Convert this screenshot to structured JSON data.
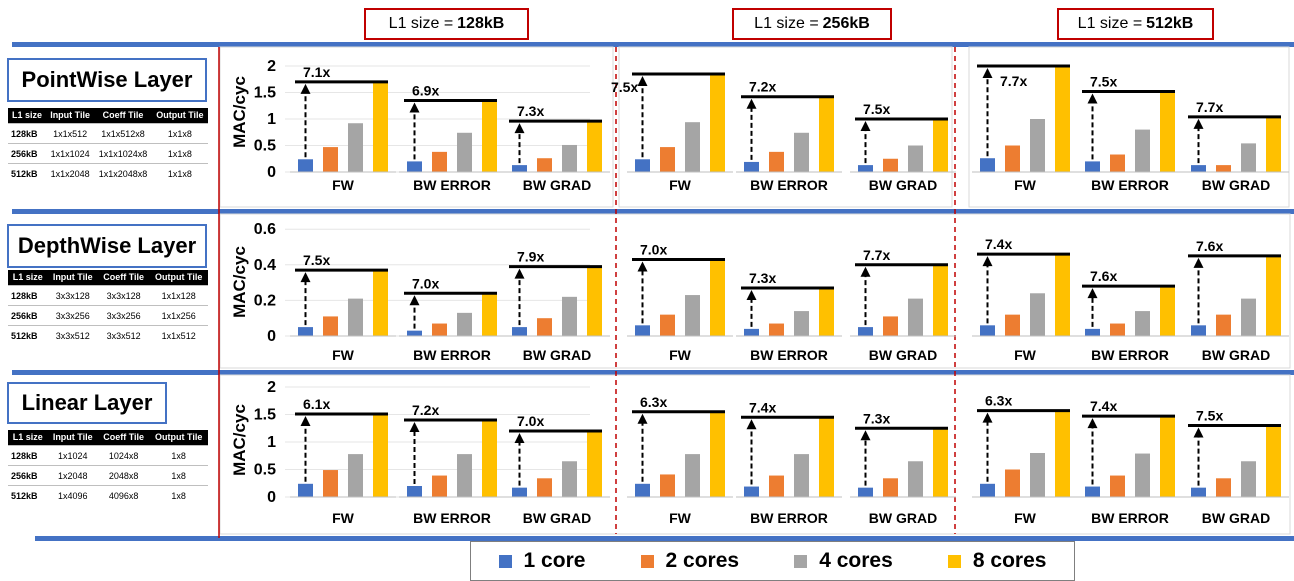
{
  "l1_headers": [
    {
      "prefix": "L1 size = ",
      "value": "128kB"
    },
    {
      "prefix": "L1 size = ",
      "value": "256kB"
    },
    {
      "prefix": "L1 size = ",
      "value": "512kB"
    }
  ],
  "layers": [
    {
      "title": "PointWise Layer",
      "table": {
        "headers": [
          "L1 size",
          "Input Tile",
          "Coeff Tile",
          "Output Tile"
        ],
        "rows": [
          [
            "128kB",
            "1x1x512",
            "1x1x512x8",
            "1x1x8"
          ],
          [
            "256kB",
            "1x1x1024",
            "1x1x1024x8",
            "1x1x8"
          ],
          [
            "512kB",
            "1x1x2048",
            "1x1x2048x8",
            "1x1x8"
          ]
        ]
      }
    },
    {
      "title": "DepthWise Layer",
      "table": {
        "headers": [
          "L1 size",
          "Input Tile",
          "Coeff Tile",
          "Output Tile"
        ],
        "rows": [
          [
            "128kB",
            "3x3x128",
            "3x3x128",
            "1x1x128"
          ],
          [
            "256kB",
            "3x3x256",
            "3x3x256",
            "1x1x256"
          ],
          [
            "512kB",
            "3x3x512",
            "3x3x512",
            "1x1x512"
          ]
        ]
      }
    },
    {
      "title": "Linear Layer",
      "table": {
        "headers": [
          "L1 size",
          "Input Tile",
          "Coeff Tile",
          "Output Tile"
        ],
        "rows": [
          [
            "128kB",
            "1x1024",
            "1024x8",
            "1x8"
          ],
          [
            "256kB",
            "1x2048",
            "2048x8",
            "1x8"
          ],
          [
            "512kB",
            "1x4096",
            "4096x8",
            "1x8"
          ]
        ]
      }
    }
  ],
  "legend": [
    {
      "label": "1 core",
      "color": "#4472c4"
    },
    {
      "label": "2 cores",
      "color": "#ed7d31"
    },
    {
      "label": "4 cores",
      "color": "#a5a5a5"
    },
    {
      "label": "8 cores",
      "color": "#ffc000"
    }
  ],
  "chart_data": [
    {
      "type": "bar",
      "layer": "PointWise Layer",
      "l1": "128kB",
      "ylabel": "MAC/cyc",
      "ylim": [
        0,
        2
      ],
      "yticks": [
        "0",
        "0.5",
        "1",
        "1.5",
        "2"
      ],
      "categories": [
        "FW",
        "BW ERROR",
        "BW GRAD"
      ],
      "series": [
        {
          "name": "1 core",
          "values": [
            0.24,
            0.2,
            0.13
          ]
        },
        {
          "name": "2 cores",
          "values": [
            0.47,
            0.38,
            0.26
          ]
        },
        {
          "name": "4 cores",
          "values": [
            0.92,
            0.74,
            0.51
          ]
        },
        {
          "name": "8 cores",
          "values": [
            1.7,
            1.35,
            0.96
          ]
        }
      ],
      "annotations": [
        "7.1x",
        "6.9x",
        "7.3x"
      ]
    },
    {
      "type": "bar",
      "layer": "PointWise Layer",
      "l1": "256kB",
      "ylabel": "",
      "ylim": [
        0,
        2
      ],
      "yticks": [],
      "categories": [
        "FW",
        "BW ERROR",
        "BW GRAD"
      ],
      "series": [
        {
          "name": "1 core",
          "values": [
            0.24,
            0.19,
            0.13
          ]
        },
        {
          "name": "2 cores",
          "values": [
            0.47,
            0.38,
            0.25
          ]
        },
        {
          "name": "4 cores",
          "values": [
            0.94,
            0.74,
            0.5
          ]
        },
        {
          "name": "8 cores",
          "values": [
            1.85,
            1.42,
            1.0
          ]
        }
      ],
      "annotations": [
        "7.5x",
        "7.2x",
        "7.5x"
      ]
    },
    {
      "type": "bar",
      "layer": "PointWise Layer",
      "l1": "512kB",
      "ylabel": "",
      "ylim": [
        0,
        2
      ],
      "yticks": [],
      "categories": [
        "FW",
        "BW ERROR",
        "BW GRAD"
      ],
      "series": [
        {
          "name": "1 core",
          "values": [
            0.26,
            0.2,
            0.13
          ]
        },
        {
          "name": "2 cores",
          "values": [
            0.5,
            0.33,
            0.13
          ]
        },
        {
          "name": "4 cores",
          "values": [
            1.0,
            0.8,
            0.54
          ]
        },
        {
          "name": "8 cores",
          "values": [
            2.0,
            1.52,
            1.04
          ]
        }
      ],
      "annotations": [
        "7.7x",
        "7.5x",
        "7.7x"
      ]
    },
    {
      "type": "bar",
      "layer": "DepthWise Layer",
      "l1": "128kB",
      "ylabel": "MAC/cyc",
      "ylim": [
        0,
        0.6
      ],
      "yticks": [
        "0",
        "0.2",
        "0.4",
        "0.6"
      ],
      "categories": [
        "FW",
        "BW ERROR",
        "BW GRAD"
      ],
      "series": [
        {
          "name": "1 core",
          "values": [
            0.05,
            0.03,
            0.05
          ]
        },
        {
          "name": "2 cores",
          "values": [
            0.11,
            0.07,
            0.1
          ]
        },
        {
          "name": "4 cores",
          "values": [
            0.21,
            0.13,
            0.22
          ]
        },
        {
          "name": "8 cores",
          "values": [
            0.37,
            0.24,
            0.39
          ]
        }
      ],
      "annotations": [
        "7.5x",
        "7.0x",
        "7.9x"
      ]
    },
    {
      "type": "bar",
      "layer": "DepthWise Layer",
      "l1": "256kB",
      "ylabel": "",
      "ylim": [
        0,
        0.6
      ],
      "yticks": [],
      "categories": [
        "FW",
        "BW ERROR",
        "BW GRAD"
      ],
      "series": [
        {
          "name": "1 core",
          "values": [
            0.06,
            0.04,
            0.05
          ]
        },
        {
          "name": "2 cores",
          "values": [
            0.12,
            0.07,
            0.11
          ]
        },
        {
          "name": "4 cores",
          "values": [
            0.23,
            0.14,
            0.21
          ]
        },
        {
          "name": "8 cores",
          "values": [
            0.43,
            0.27,
            0.4
          ]
        }
      ],
      "annotations": [
        "7.0x",
        "7.3x",
        "7.7x"
      ]
    },
    {
      "type": "bar",
      "layer": "DepthWise Layer",
      "l1": "512kB",
      "ylabel": "",
      "ylim": [
        0,
        0.6
      ],
      "yticks": [],
      "categories": [
        "FW",
        "BW ERROR",
        "BW GRAD"
      ],
      "series": [
        {
          "name": "1 core",
          "values": [
            0.06,
            0.04,
            0.06
          ]
        },
        {
          "name": "2 cores",
          "values": [
            0.12,
            0.07,
            0.12
          ]
        },
        {
          "name": "4 cores",
          "values": [
            0.24,
            0.14,
            0.21
          ]
        },
        {
          "name": "8 cores",
          "values": [
            0.46,
            0.28,
            0.45
          ]
        }
      ],
      "annotations": [
        "7.4x",
        "7.6x",
        "7.6x"
      ]
    },
    {
      "type": "bar",
      "layer": "Linear Layer",
      "l1": "128kB",
      "ylabel": "MAC/cyc",
      "ylim": [
        0,
        2
      ],
      "yticks": [
        "0",
        "0.5",
        "1",
        "1.5",
        "2"
      ],
      "categories": [
        "FW",
        "BW ERROR",
        "BW GRAD"
      ],
      "series": [
        {
          "name": "1 core",
          "values": [
            0.24,
            0.2,
            0.17
          ]
        },
        {
          "name": "2 cores",
          "values": [
            0.49,
            0.39,
            0.34
          ]
        },
        {
          "name": "4 cores",
          "values": [
            0.78,
            0.78,
            0.65
          ]
        },
        {
          "name": "8 cores",
          "values": [
            1.51,
            1.4,
            1.2
          ]
        }
      ],
      "annotations": [
        "6.1x",
        "7.2x",
        "7.0x"
      ]
    },
    {
      "type": "bar",
      "layer": "Linear Layer",
      "l1": "256kB",
      "ylabel": "",
      "ylim": [
        0,
        2
      ],
      "yticks": [],
      "categories": [
        "FW",
        "BW ERROR",
        "BW GRAD"
      ],
      "series": [
        {
          "name": "1 core",
          "values": [
            0.24,
            0.19,
            0.17
          ]
        },
        {
          "name": "2 cores",
          "values": [
            0.41,
            0.39,
            0.34
          ]
        },
        {
          "name": "4 cores",
          "values": [
            0.78,
            0.78,
            0.65
          ]
        },
        {
          "name": "8 cores",
          "values": [
            1.55,
            1.45,
            1.25
          ]
        }
      ],
      "annotations": [
        "6.3x",
        "7.4x",
        "7.3x"
      ]
    },
    {
      "type": "bar",
      "layer": "Linear Layer",
      "l1": "512kB",
      "ylabel": "",
      "ylim": [
        0,
        2
      ],
      "yticks": [],
      "categories": [
        "FW",
        "BW ERROR",
        "BW GRAD"
      ],
      "series": [
        {
          "name": "1 core",
          "values": [
            0.24,
            0.19,
            0.17
          ]
        },
        {
          "name": "2 cores",
          "values": [
            0.5,
            0.39,
            0.34
          ]
        },
        {
          "name": "4 cores",
          "values": [
            0.8,
            0.79,
            0.65
          ]
        },
        {
          "name": "8 cores",
          "values": [
            1.57,
            1.47,
            1.3
          ]
        }
      ],
      "annotations": [
        "6.3x",
        "7.4x",
        "7.5x"
      ]
    }
  ]
}
